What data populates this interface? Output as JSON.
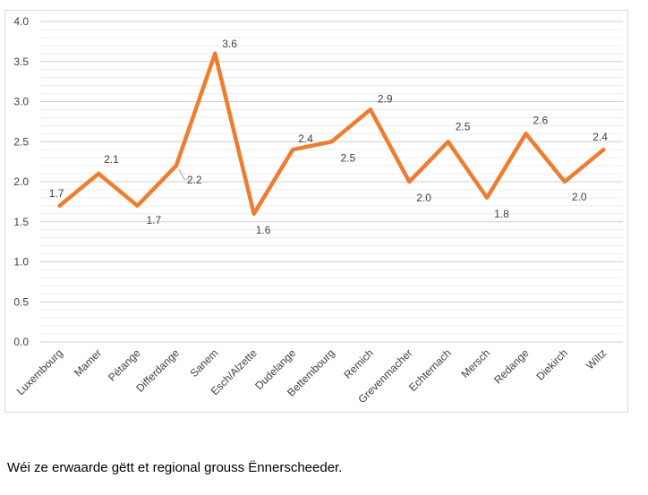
{
  "chart_data": {
    "type": "line",
    "categories": [
      "Luxembourg",
      "Mamer",
      "Pétange",
      "Differdange",
      "Sanem",
      "Esch/Alzette",
      "Dudelange",
      "Bettembourg",
      "Remich",
      "Grevenmacher",
      "Echternach",
      "Mersch",
      "Redange",
      "Diekirch",
      "Wiltz"
    ],
    "values": [
      1.7,
      2.1,
      1.7,
      2.2,
      3.6,
      1.6,
      2.4,
      2.5,
      2.9,
      2.0,
      2.5,
      1.8,
      2.6,
      2.0,
      2.4
    ],
    "data_labels": [
      "1.7",
      "2.1",
      "1.7",
      "2.2",
      "3.6",
      "1.6",
      "2.4",
      "2.5",
      "2.9",
      "2.0",
      "2.5",
      "1.8",
      "2.6",
      "2.0",
      "2.4"
    ],
    "yticks": [
      "0.0",
      "0.5",
      "1.0",
      "1.5",
      "2.0",
      "2.5",
      "3.0",
      "3.5",
      "4.0"
    ],
    "ylim": [
      0,
      4
    ],
    "grid": true,
    "line_color": "#ed7d31",
    "grid_color": "#d9d9d9",
    "title": "",
    "xlabel": "",
    "ylabel": ""
  },
  "caption": "Wéi ze erwaarde gëtt et regional grouss Ënnerscheeder."
}
